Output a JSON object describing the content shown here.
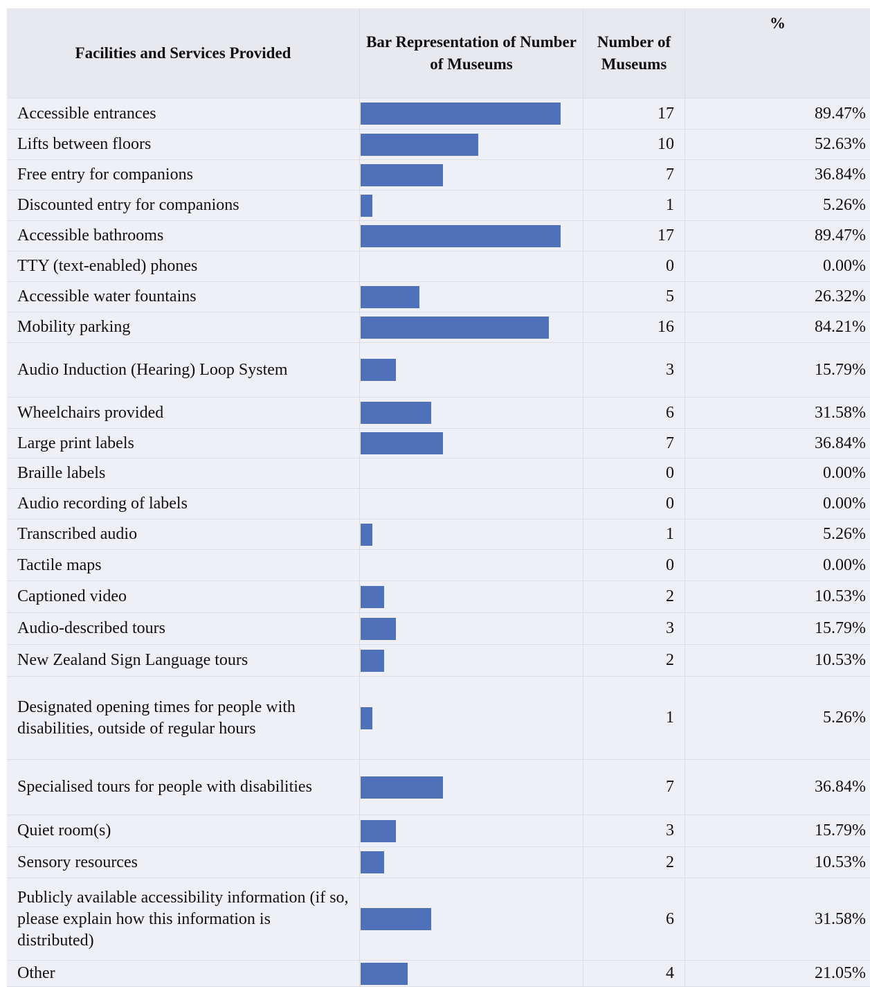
{
  "table": {
    "headers": [
      "Facilities and Services Provided",
      "Bar Representation of Number of Museums",
      "Number of Museums",
      "%"
    ],
    "rows": [
      [
        "Accessible entrances",
        17,
        "89.47%"
      ],
      [
        "Lifts between floors",
        10,
        "52.63%"
      ],
      [
        "Free entry for companions",
        7,
        "36.84%"
      ],
      [
        "Discounted entry for companions",
        1,
        "5.26%"
      ],
      [
        "Accessible bathrooms",
        17,
        "89.47%"
      ],
      [
        "TTY (text-enabled) phones",
        0,
        "0.00%"
      ],
      [
        "Accessible water fountains",
        5,
        "26.32%"
      ],
      [
        "Mobility parking",
        16,
        "84.21%"
      ],
      [
        "Audio Induction (Hearing) Loop System",
        3,
        "15.79%"
      ],
      [
        "Wheelchairs provided",
        6,
        "31.58%"
      ],
      [
        "Large print labels",
        7,
        "36.84%"
      ],
      [
        "Braille labels",
        0,
        "0.00%"
      ],
      [
        "Audio recording of labels",
        0,
        "0.00%"
      ],
      [
        "Transcribed audio",
        1,
        "5.26%"
      ],
      [
        "Tactile maps",
        0,
        "0.00%"
      ],
      [
        "Captioned video",
        2,
        "10.53%"
      ],
      [
        "Audio-described tours",
        3,
        "15.79%"
      ],
      [
        "New Zealand Sign Language tours",
        2,
        "10.53%"
      ],
      [
        "Designated opening times for people with disabilities, outside of regular hours",
        1,
        "5.26%"
      ],
      [
        "Specialised tours for people with disabilities",
        7,
        "36.84%"
      ],
      [
        "Quiet room(s)",
        3,
        "15.79%"
      ],
      [
        "Sensory resources",
        2,
        "10.53%"
      ],
      [
        "Publicly available accessibility information (if so, please explain how this information is distributed)",
        6,
        "31.58%"
      ],
      [
        "Other",
        4,
        "21.05%"
      ]
    ]
  }
}
